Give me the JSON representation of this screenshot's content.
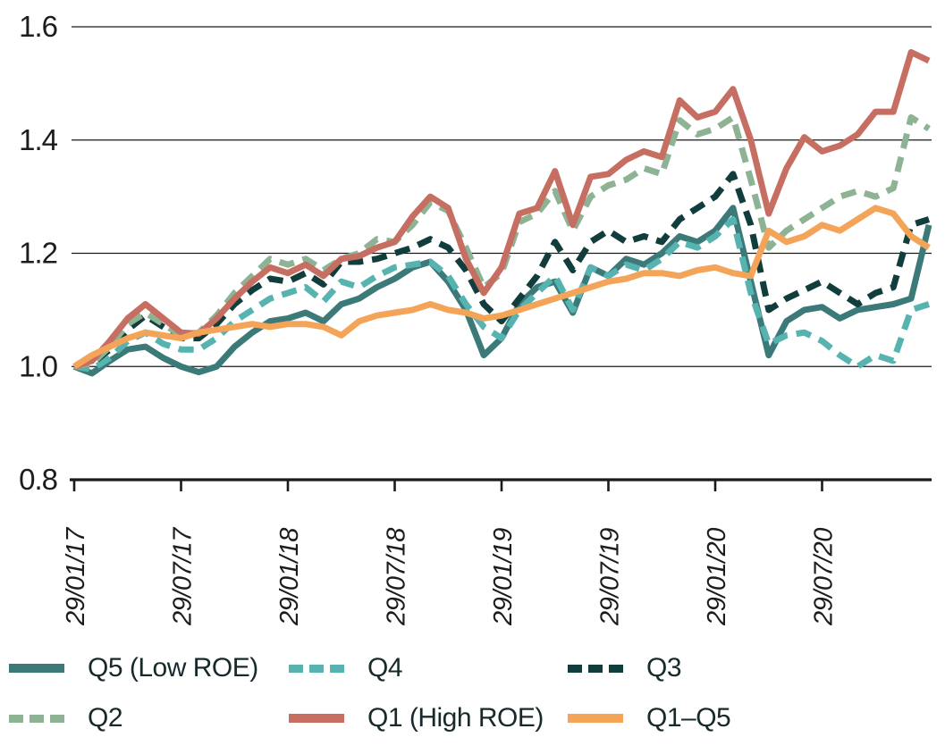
{
  "chart_data": {
    "type": "line",
    "title": "",
    "grid": "horizontal",
    "legend_position": "bottom",
    "axis_color": "#1a1a1a",
    "x_axis": {
      "tick_labels": [
        "29/01/17",
        "29/07/17",
        "29/01/18",
        "29/07/18",
        "29/01/19",
        "29/07/19",
        "29/01/20",
        "29/07/20"
      ],
      "tick_indices": [
        0,
        6,
        12,
        18,
        24,
        30,
        36,
        42
      ],
      "n_points": 49
    },
    "y_axis": {
      "ticks": [
        0.8,
        1.0,
        1.2,
        1.4,
        1.6
      ],
      "tick_labels": [
        "0.8",
        "1.0",
        "1.2",
        "1.4",
        "1.6"
      ],
      "ylim": [
        0.8,
        1.6
      ]
    },
    "series": [
      {
        "name": "Q5 (Low ROE)",
        "color": "#3b7a78",
        "style": "solid",
        "values": [
          1.0,
          0.988,
          1.01,
          1.03,
          1.035,
          1.015,
          1.0,
          0.99,
          1.0,
          1.035,
          1.06,
          1.08,
          1.085,
          1.095,
          1.08,
          1.11,
          1.12,
          1.14,
          1.155,
          1.175,
          1.185,
          1.15,
          1.1,
          1.02,
          1.05,
          1.11,
          1.14,
          1.15,
          1.095,
          1.175,
          1.16,
          1.19,
          1.18,
          1.2,
          1.23,
          1.22,
          1.24,
          1.28,
          1.15,
          1.02,
          1.08,
          1.1,
          1.105,
          1.085,
          1.1,
          1.105,
          1.11,
          1.12,
          1.25
        ]
      },
      {
        "name": "Q4",
        "color": "#57b3b0",
        "style": "dashed",
        "values": [
          1.0,
          0.995,
          1.015,
          1.045,
          1.06,
          1.04,
          1.03,
          1.03,
          1.05,
          1.08,
          1.1,
          1.12,
          1.13,
          1.14,
          1.115,
          1.15,
          1.14,
          1.16,
          1.175,
          1.18,
          1.185,
          1.16,
          1.11,
          1.07,
          1.05,
          1.1,
          1.13,
          1.16,
          1.1,
          1.175,
          1.16,
          1.18,
          1.17,
          1.19,
          1.22,
          1.21,
          1.23,
          1.26,
          1.13,
          1.04,
          1.055,
          1.06,
          1.045,
          1.02,
          1.0,
          1.02,
          1.01,
          1.1,
          1.11
        ]
      },
      {
        "name": "Q3",
        "color": "#113e3c",
        "style": "dashed",
        "values": [
          1.0,
          1.005,
          1.03,
          1.065,
          1.09,
          1.07,
          1.05,
          1.05,
          1.075,
          1.11,
          1.135,
          1.155,
          1.15,
          1.165,
          1.145,
          1.185,
          1.185,
          1.19,
          1.2,
          1.21,
          1.225,
          1.21,
          1.17,
          1.11,
          1.08,
          1.12,
          1.16,
          1.22,
          1.17,
          1.22,
          1.24,
          1.22,
          1.23,
          1.22,
          1.26,
          1.28,
          1.3,
          1.34,
          1.25,
          1.1,
          1.12,
          1.135,
          1.15,
          1.13,
          1.11,
          1.13,
          1.14,
          1.25,
          1.26
        ]
      },
      {
        "name": "Q2",
        "color": "#8db394",
        "style": "dashed",
        "values": [
          1.0,
          1.005,
          1.035,
          1.075,
          1.095,
          1.075,
          1.055,
          1.06,
          1.09,
          1.13,
          1.16,
          1.19,
          1.18,
          1.19,
          1.17,
          1.19,
          1.2,
          1.225,
          1.22,
          1.25,
          1.29,
          1.275,
          1.21,
          1.14,
          1.165,
          1.255,
          1.27,
          1.31,
          1.24,
          1.3,
          1.32,
          1.33,
          1.35,
          1.34,
          1.435,
          1.41,
          1.42,
          1.44,
          1.33,
          1.21,
          1.24,
          1.26,
          1.28,
          1.3,
          1.31,
          1.3,
          1.315,
          1.44,
          1.42
        ]
      },
      {
        "name": "Q1 (High ROE)",
        "color": "#c76e62",
        "style": "solid",
        "values": [
          1.0,
          1.01,
          1.045,
          1.085,
          1.11,
          1.085,
          1.06,
          1.058,
          1.085,
          1.12,
          1.15,
          1.175,
          1.165,
          1.18,
          1.16,
          1.19,
          1.195,
          1.21,
          1.22,
          1.265,
          1.3,
          1.28,
          1.19,
          1.13,
          1.175,
          1.27,
          1.28,
          1.345,
          1.25,
          1.335,
          1.34,
          1.365,
          1.38,
          1.37,
          1.47,
          1.44,
          1.45,
          1.49,
          1.4,
          1.27,
          1.35,
          1.405,
          1.38,
          1.39,
          1.41,
          1.45,
          1.45,
          1.555,
          1.54
        ]
      },
      {
        "name": "Q1–Q5",
        "color": "#f4a459",
        "style": "solid",
        "values": [
          1.0,
          1.02,
          1.035,
          1.05,
          1.06,
          1.055,
          1.05,
          1.06,
          1.065,
          1.07,
          1.075,
          1.07,
          1.075,
          1.075,
          1.07,
          1.055,
          1.08,
          1.09,
          1.095,
          1.1,
          1.11,
          1.1,
          1.095,
          1.085,
          1.09,
          1.1,
          1.11,
          1.12,
          1.13,
          1.14,
          1.15,
          1.155,
          1.165,
          1.165,
          1.16,
          1.17,
          1.175,
          1.165,
          1.16,
          1.24,
          1.22,
          1.23,
          1.25,
          1.24,
          1.26,
          1.28,
          1.27,
          1.23,
          1.21
        ]
      }
    ]
  }
}
